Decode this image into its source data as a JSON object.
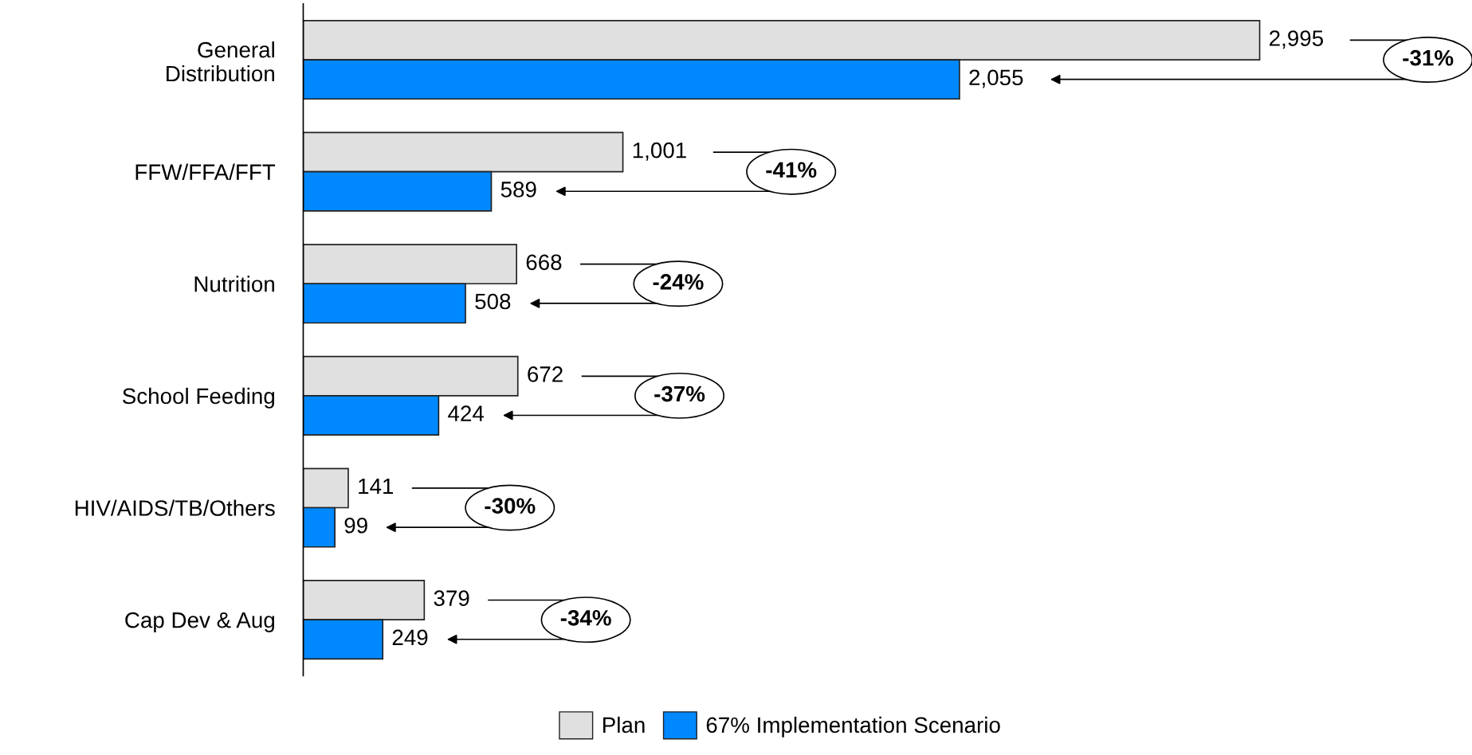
{
  "chart_data": {
    "type": "bar",
    "orientation": "horizontal",
    "categories": [
      "General\nDistribution",
      "FFW/FFA/FFT",
      "Nutrition",
      "School Feeding",
      "HIV/AIDS/TB/Others",
      "Cap Dev & Aug"
    ],
    "series": [
      {
        "name": "Plan",
        "color": "#e0e0e0",
        "values": [
          2995,
          1001,
          668,
          672,
          141,
          379
        ],
        "value_labels": [
          "2,995",
          "1,001",
          "668",
          "672",
          "141",
          "379"
        ]
      },
      {
        "name": "67% Implementation Scenario",
        "color": "#0088ff",
        "values": [
          2055,
          589,
          508,
          424,
          99,
          249
        ],
        "value_labels": [
          "2,055",
          "589",
          "508",
          "424",
          "99",
          "249"
        ]
      }
    ],
    "legend": "bottom",
    "annotations": [
      "-31%",
      "-41%",
      "-24%",
      "-37%",
      "-30%",
      "-34%"
    ]
  }
}
